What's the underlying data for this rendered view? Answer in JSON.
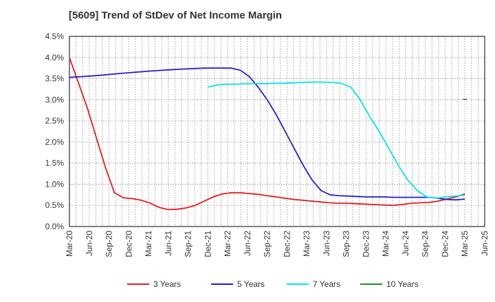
{
  "chart_data": {
    "type": "line",
    "title": "[5609]  Trend of StDev of Net Income Margin",
    "x_ticks": [
      "Mar-20",
      "Jun-20",
      "Sep-20",
      "Dec-20",
      "Mar-21",
      "Jun-21",
      "Sep-21",
      "Dec-21",
      "Mar-22",
      "Jun-22",
      "Sep-22",
      "Dec-22",
      "Mar-23",
      "Jun-23",
      "Sep-23",
      "Dec-23",
      "Mar-24",
      "Jun-24",
      "Sep-24",
      "Dec-24",
      "Mar-25",
      "Jun-25"
    ],
    "y_ticks": [
      "0.0%",
      "0.5%",
      "1.0%",
      "1.5%",
      "2.0%",
      "2.5%",
      "3.0%",
      "3.5%",
      "4.0%",
      "4.5%"
    ],
    "ylim": [
      0,
      4.5
    ],
    "xlabel": "",
    "ylabel": "",
    "grid": true,
    "legend_position": "bottom",
    "series": [
      {
        "name": "3 Years",
        "color": "#e41a1c",
        "x": [
          0,
          1,
          2,
          3,
          4,
          5,
          6,
          7,
          8,
          9,
          10,
          11,
          12,
          13,
          14,
          15,
          16,
          17,
          18,
          19,
          20,
          21,
          22,
          23,
          24,
          25,
          26,
          27,
          28,
          29,
          30,
          31,
          32,
          33,
          34,
          35,
          36,
          37,
          38,
          39,
          40,
          41,
          42,
          43,
          44,
          45,
          46,
          47,
          48,
          49,
          50,
          51,
          52,
          53,
          54,
          55,
          56,
          57,
          58,
          59,
          60
        ],
        "values": [
          4.0,
          3.4,
          2.8,
          2.1,
          1.4,
          0.8,
          0.68,
          0.66,
          0.62,
          0.55,
          0.45,
          0.4,
          0.41,
          0.44,
          0.5,
          0.6,
          0.7,
          0.77,
          0.8,
          0.8,
          0.78,
          0.76,
          0.73,
          0.7,
          0.67,
          0.64,
          0.62,
          0.6,
          0.58,
          0.56,
          0.55,
          0.55,
          0.54,
          0.53,
          0.52,
          0.51,
          0.5,
          0.52,
          0.55,
          0.56,
          0.57,
          0.6,
          0.65,
          0.7,
          0.77,
          0.77,
          0.77,
          0.77,
          0.77,
          0.77,
          0.77,
          0.77,
          0.77,
          0.77,
          0.77,
          0.77,
          0.77,
          0.77,
          0.77,
          0.77,
          0.77
        ],
        "points_used": 45
      },
      {
        "name": "5 Years",
        "color": "#1f1fcc",
        "x": [
          0,
          3,
          6,
          9,
          12,
          15,
          18,
          19,
          20,
          21,
          22,
          23,
          24,
          25,
          26,
          27,
          28,
          29,
          30,
          31,
          32,
          33,
          34,
          35,
          36,
          37,
          38,
          39,
          40,
          41,
          42,
          43,
          44
        ],
        "values": [
          3.53,
          3.57,
          3.63,
          3.68,
          3.72,
          3.75,
          3.75,
          3.7,
          3.55,
          3.3,
          3.0,
          2.65,
          2.25,
          1.85,
          1.45,
          1.1,
          0.85,
          0.75,
          0.73,
          0.72,
          0.71,
          0.7,
          0.7,
          0.7,
          0.69,
          0.69,
          0.69,
          0.69,
          0.69,
          0.67,
          0.64,
          0.63,
          0.65
        ]
      },
      {
        "name": "7 Years",
        "color": "#00e5ee",
        "x": [
          0,
          1,
          2,
          3,
          4,
          5,
          6,
          7,
          8,
          9,
          10,
          11,
          12,
          13,
          14,
          15,
          16,
          17,
          18,
          19,
          20,
          21,
          22,
          23,
          24,
          25,
          26,
          27
        ],
        "values": [
          3.3,
          3.35,
          3.37,
          3.37,
          3.38,
          3.38,
          3.38,
          3.39,
          3.39,
          3.4,
          3.41,
          3.42,
          3.42,
          3.41,
          3.39,
          3.3,
          3.0,
          2.6,
          2.25,
          1.85,
          1.45,
          1.1,
          0.85,
          0.7,
          0.67,
          0.7,
          0.72,
          0.74
        ]
      },
      {
        "name": "10 Years",
        "color": "#228b22",
        "x": [
          0,
          1
        ],
        "values": [
          3.01,
          3.01
        ]
      }
    ]
  }
}
